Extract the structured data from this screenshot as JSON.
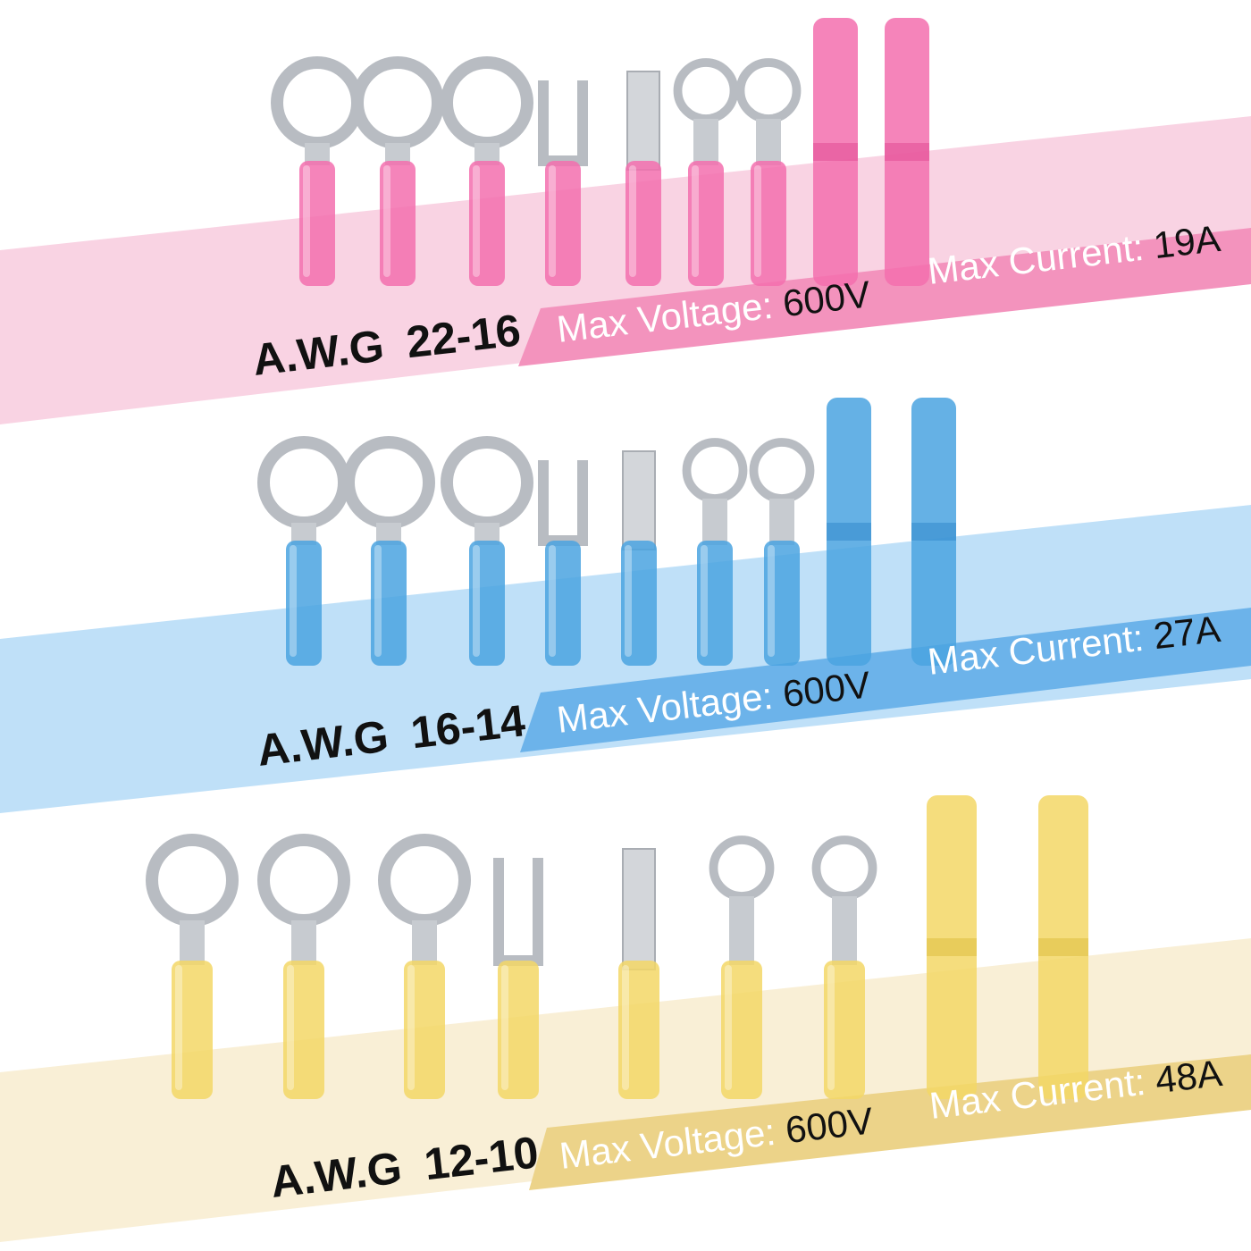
{
  "sections": [
    {
      "awg": "A.W.G",
      "gauge": "22-16",
      "voltage_label": "Max Voltage:",
      "voltage": "600V",
      "current_label": "Max Current:",
      "current": "19A"
    },
    {
      "awg": "A.W.G",
      "gauge": "16-14",
      "voltage_label": "Max Voltage:",
      "voltage": "600V",
      "current_label": "Max Current:",
      "current": "27A"
    },
    {
      "awg": "A.W.G",
      "gauge": "12-10",
      "voltage_label": "Max Voltage:",
      "voltage": "600V",
      "current_label": "Max Current:",
      "current": "48A"
    }
  ]
}
